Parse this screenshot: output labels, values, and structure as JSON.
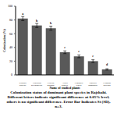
{
  "chart_data": {
    "type": "bar",
    "categories": [
      "Sesbania aculeata",
      "Artocarpus heterophyllus",
      "Cyperus rotundus",
      "Acacia nilotica",
      "Eragrostis tenella",
      "Digitaria sanguinalis",
      "Cynodon dactylon"
    ],
    "values": [
      82,
      72,
      68,
      33,
      27,
      20,
      8
    ],
    "errors": [
      3,
      3,
      3,
      2,
      2,
      2,
      1
    ],
    "letters": [
      "a",
      "b",
      "b",
      "c",
      "c",
      "c",
      "d"
    ],
    "color": "#595959",
    "ylim": [
      0,
      100
    ],
    "yticks": [
      0,
      20,
      40,
      60,
      80,
      100
    ],
    "x_label": "Name of studied plants",
    "y_label": "Colonization (%)",
    "caption": "Colonization status of dominant plant species in Rajshahi. Different letters indicate significant difference at 0.05% level, others is no significant difference. Error Bar Indicates St (SD), n=3.",
    "grid": false,
    "tick_labels": true
  }
}
